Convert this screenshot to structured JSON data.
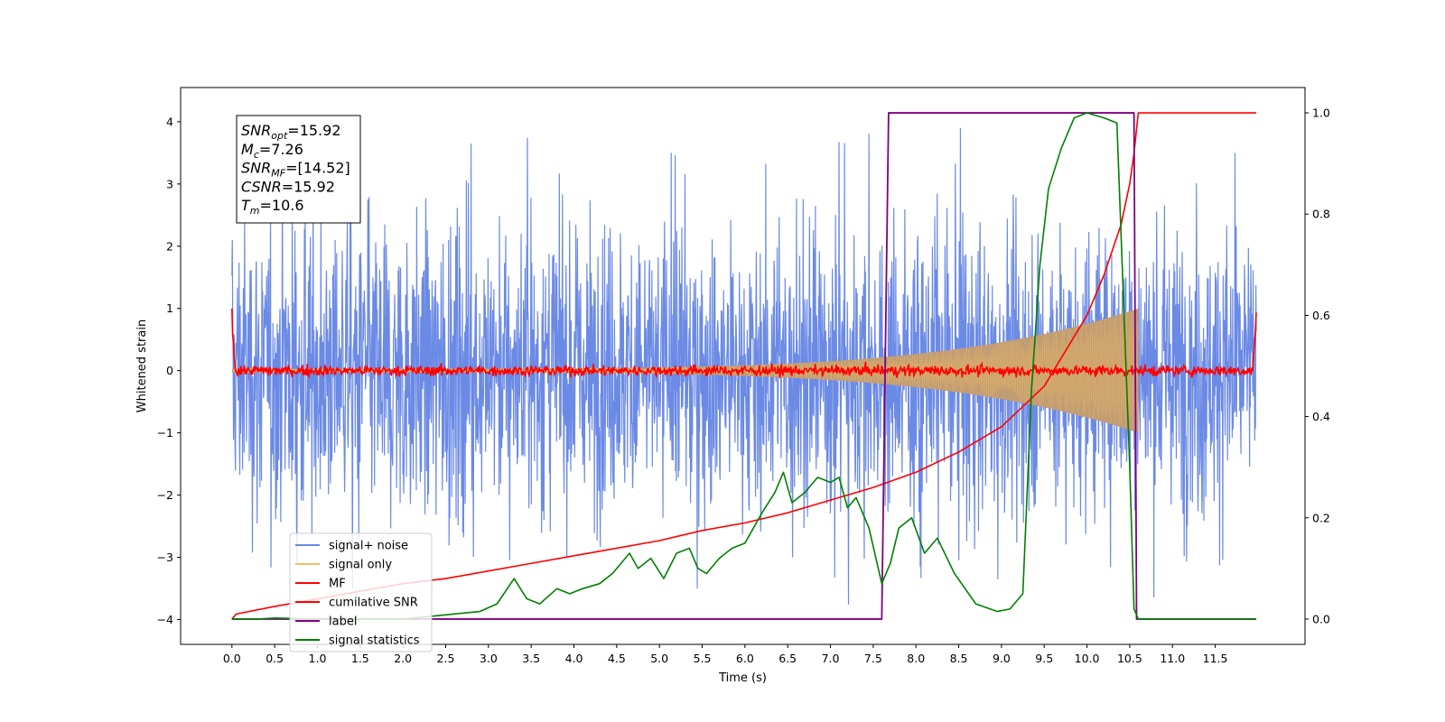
{
  "chart_data": {
    "type": "line",
    "xlabel": "Time (s)",
    "ylabel": "Whitened strain",
    "xlim": [
      -0.6,
      12.55
    ],
    "ylim": [
      -4.4,
      4.55
    ],
    "y2lim": [
      -0.05,
      1.05
    ],
    "x_ticks": [
      0.0,
      0.5,
      1.0,
      1.5,
      2.0,
      2.5,
      3.0,
      3.5,
      4.0,
      4.5,
      5.0,
      5.5,
      6.0,
      6.5,
      7.0,
      7.5,
      8.0,
      8.5,
      9.0,
      9.5,
      10.0,
      10.5,
      11.0,
      11.5
    ],
    "x_tick_labels": [
      "0.0",
      "0.5",
      "1.0",
      "1.5",
      "2.0",
      "2.5",
      "3.0",
      "3.5",
      "4.0",
      "4.5",
      "5.0",
      "5.5",
      "6.0",
      "6.5",
      "7.0",
      "7.5",
      "8.0",
      "8.5",
      "9.0",
      "9.5",
      "10.0",
      "10.5",
      "11.0",
      "11.5"
    ],
    "y_ticks": [
      -4,
      -3,
      -2,
      -1,
      0,
      1,
      2,
      3,
      4
    ],
    "y_tick_labels": [
      "−4",
      "−3",
      "−2",
      "−1",
      "0",
      "1",
      "2",
      "3",
      "4"
    ],
    "y2_ticks": [
      0.0,
      0.2,
      0.4,
      0.6,
      0.8,
      1.0
    ],
    "y2_tick_labels": [
      "0.0",
      "0.2",
      "0.4",
      "0.6",
      "0.8",
      "1.0"
    ],
    "legend_position": "lower-left",
    "grid": false,
    "annotation_box": {
      "lines": [
        {
          "sym": "SNR",
          "sub": "opt",
          "rest": "=15.92"
        },
        {
          "sym": "M",
          "sub": "c",
          "rest": "=7.26"
        },
        {
          "sym": "SNR",
          "sub": "MF",
          "rest": "=[14.52]"
        },
        {
          "sym": "CSNR",
          "sub": "",
          "rest": "=15.92"
        },
        {
          "sym": "T",
          "sub": "m",
          "rest": "=10.6"
        }
      ]
    },
    "series": [
      {
        "name": "signal+ noise",
        "color": "#6b8ae5",
        "axis": "left",
        "kind": "noise",
        "x_range": [
          0.0,
          11.98
        ],
        "envelope": 1.15,
        "spike_max": 3.9,
        "min_spike": -4.0
      },
      {
        "name": "signal only",
        "color": "#f5c060",
        "axis": "left",
        "kind": "chirp",
        "x_range": [
          0.0,
          10.6
        ],
        "amp_start": 0.03,
        "amp_end": 1.0,
        "fill": "#c29d74"
      },
      {
        "name": "MF",
        "color": "#ff0000",
        "axis": "left",
        "kind": "mf",
        "x_range": [
          0.0,
          11.98
        ],
        "start_value": 1.0,
        "end_value": 0.9,
        "noise_amp": 0.06
      },
      {
        "name": "cumilative SNR",
        "color": "#ff0000",
        "axis": "right",
        "x": [
          0.0,
          0.05,
          0.5,
          1.0,
          1.5,
          2.0,
          2.5,
          3.0,
          3.5,
          4.0,
          4.5,
          5.0,
          5.5,
          6.0,
          6.5,
          7.0,
          7.5,
          8.0,
          8.5,
          9.0,
          9.5,
          10.0,
          10.2,
          10.4,
          10.5,
          10.55,
          10.6,
          11.98
        ],
        "y": [
          0.0,
          0.01,
          0.025,
          0.04,
          0.055,
          0.07,
          0.08,
          0.095,
          0.11,
          0.125,
          0.14,
          0.155,
          0.175,
          0.19,
          0.21,
          0.235,
          0.26,
          0.29,
          0.33,
          0.38,
          0.46,
          0.6,
          0.68,
          0.78,
          0.86,
          0.92,
          1.0,
          1.0
        ]
      },
      {
        "name": "label",
        "color": "#800080",
        "axis": "right",
        "x": [
          0.0,
          7.6,
          7.68,
          10.55,
          10.58,
          11.98
        ],
        "y": [
          0.0,
          0.0,
          1.0,
          1.0,
          0.0,
          0.0
        ]
      },
      {
        "name": "signal statistics",
        "color": "#008000",
        "axis": "right",
        "x": [
          0.0,
          0.3,
          0.5,
          1.0,
          1.5,
          2.0,
          2.3,
          2.6,
          2.9,
          3.1,
          3.3,
          3.45,
          3.6,
          3.8,
          3.95,
          4.1,
          4.3,
          4.45,
          4.55,
          4.65,
          4.75,
          4.9,
          5.05,
          5.2,
          5.35,
          5.45,
          5.55,
          5.7,
          5.85,
          6.0,
          6.2,
          6.35,
          6.45,
          6.55,
          6.7,
          6.85,
          7.0,
          7.1,
          7.2,
          7.3,
          7.45,
          7.6,
          7.7,
          7.8,
          7.95,
          8.1,
          8.25,
          8.45,
          8.7,
          8.95,
          9.1,
          9.25,
          9.35,
          9.45,
          9.55,
          9.7,
          9.85,
          10.0,
          10.2,
          10.35,
          10.5,
          10.55,
          10.6,
          10.7,
          11.0,
          11.98
        ],
        "y": [
          0.0,
          0.0,
          0.002,
          0.0,
          0.0,
          0.0,
          0.005,
          0.01,
          0.015,
          0.03,
          0.08,
          0.04,
          0.03,
          0.06,
          0.05,
          0.06,
          0.07,
          0.09,
          0.11,
          0.13,
          0.1,
          0.12,
          0.08,
          0.13,
          0.14,
          0.1,
          0.09,
          0.12,
          0.14,
          0.15,
          0.21,
          0.25,
          0.29,
          0.23,
          0.25,
          0.28,
          0.27,
          0.28,
          0.22,
          0.24,
          0.18,
          0.07,
          0.11,
          0.18,
          0.2,
          0.13,
          0.16,
          0.09,
          0.03,
          0.015,
          0.02,
          0.05,
          0.45,
          0.7,
          0.85,
          0.93,
          0.99,
          1.0,
          0.99,
          0.98,
          0.3,
          0.02,
          0.0,
          0.0,
          0.0,
          0.0
        ]
      }
    ]
  }
}
